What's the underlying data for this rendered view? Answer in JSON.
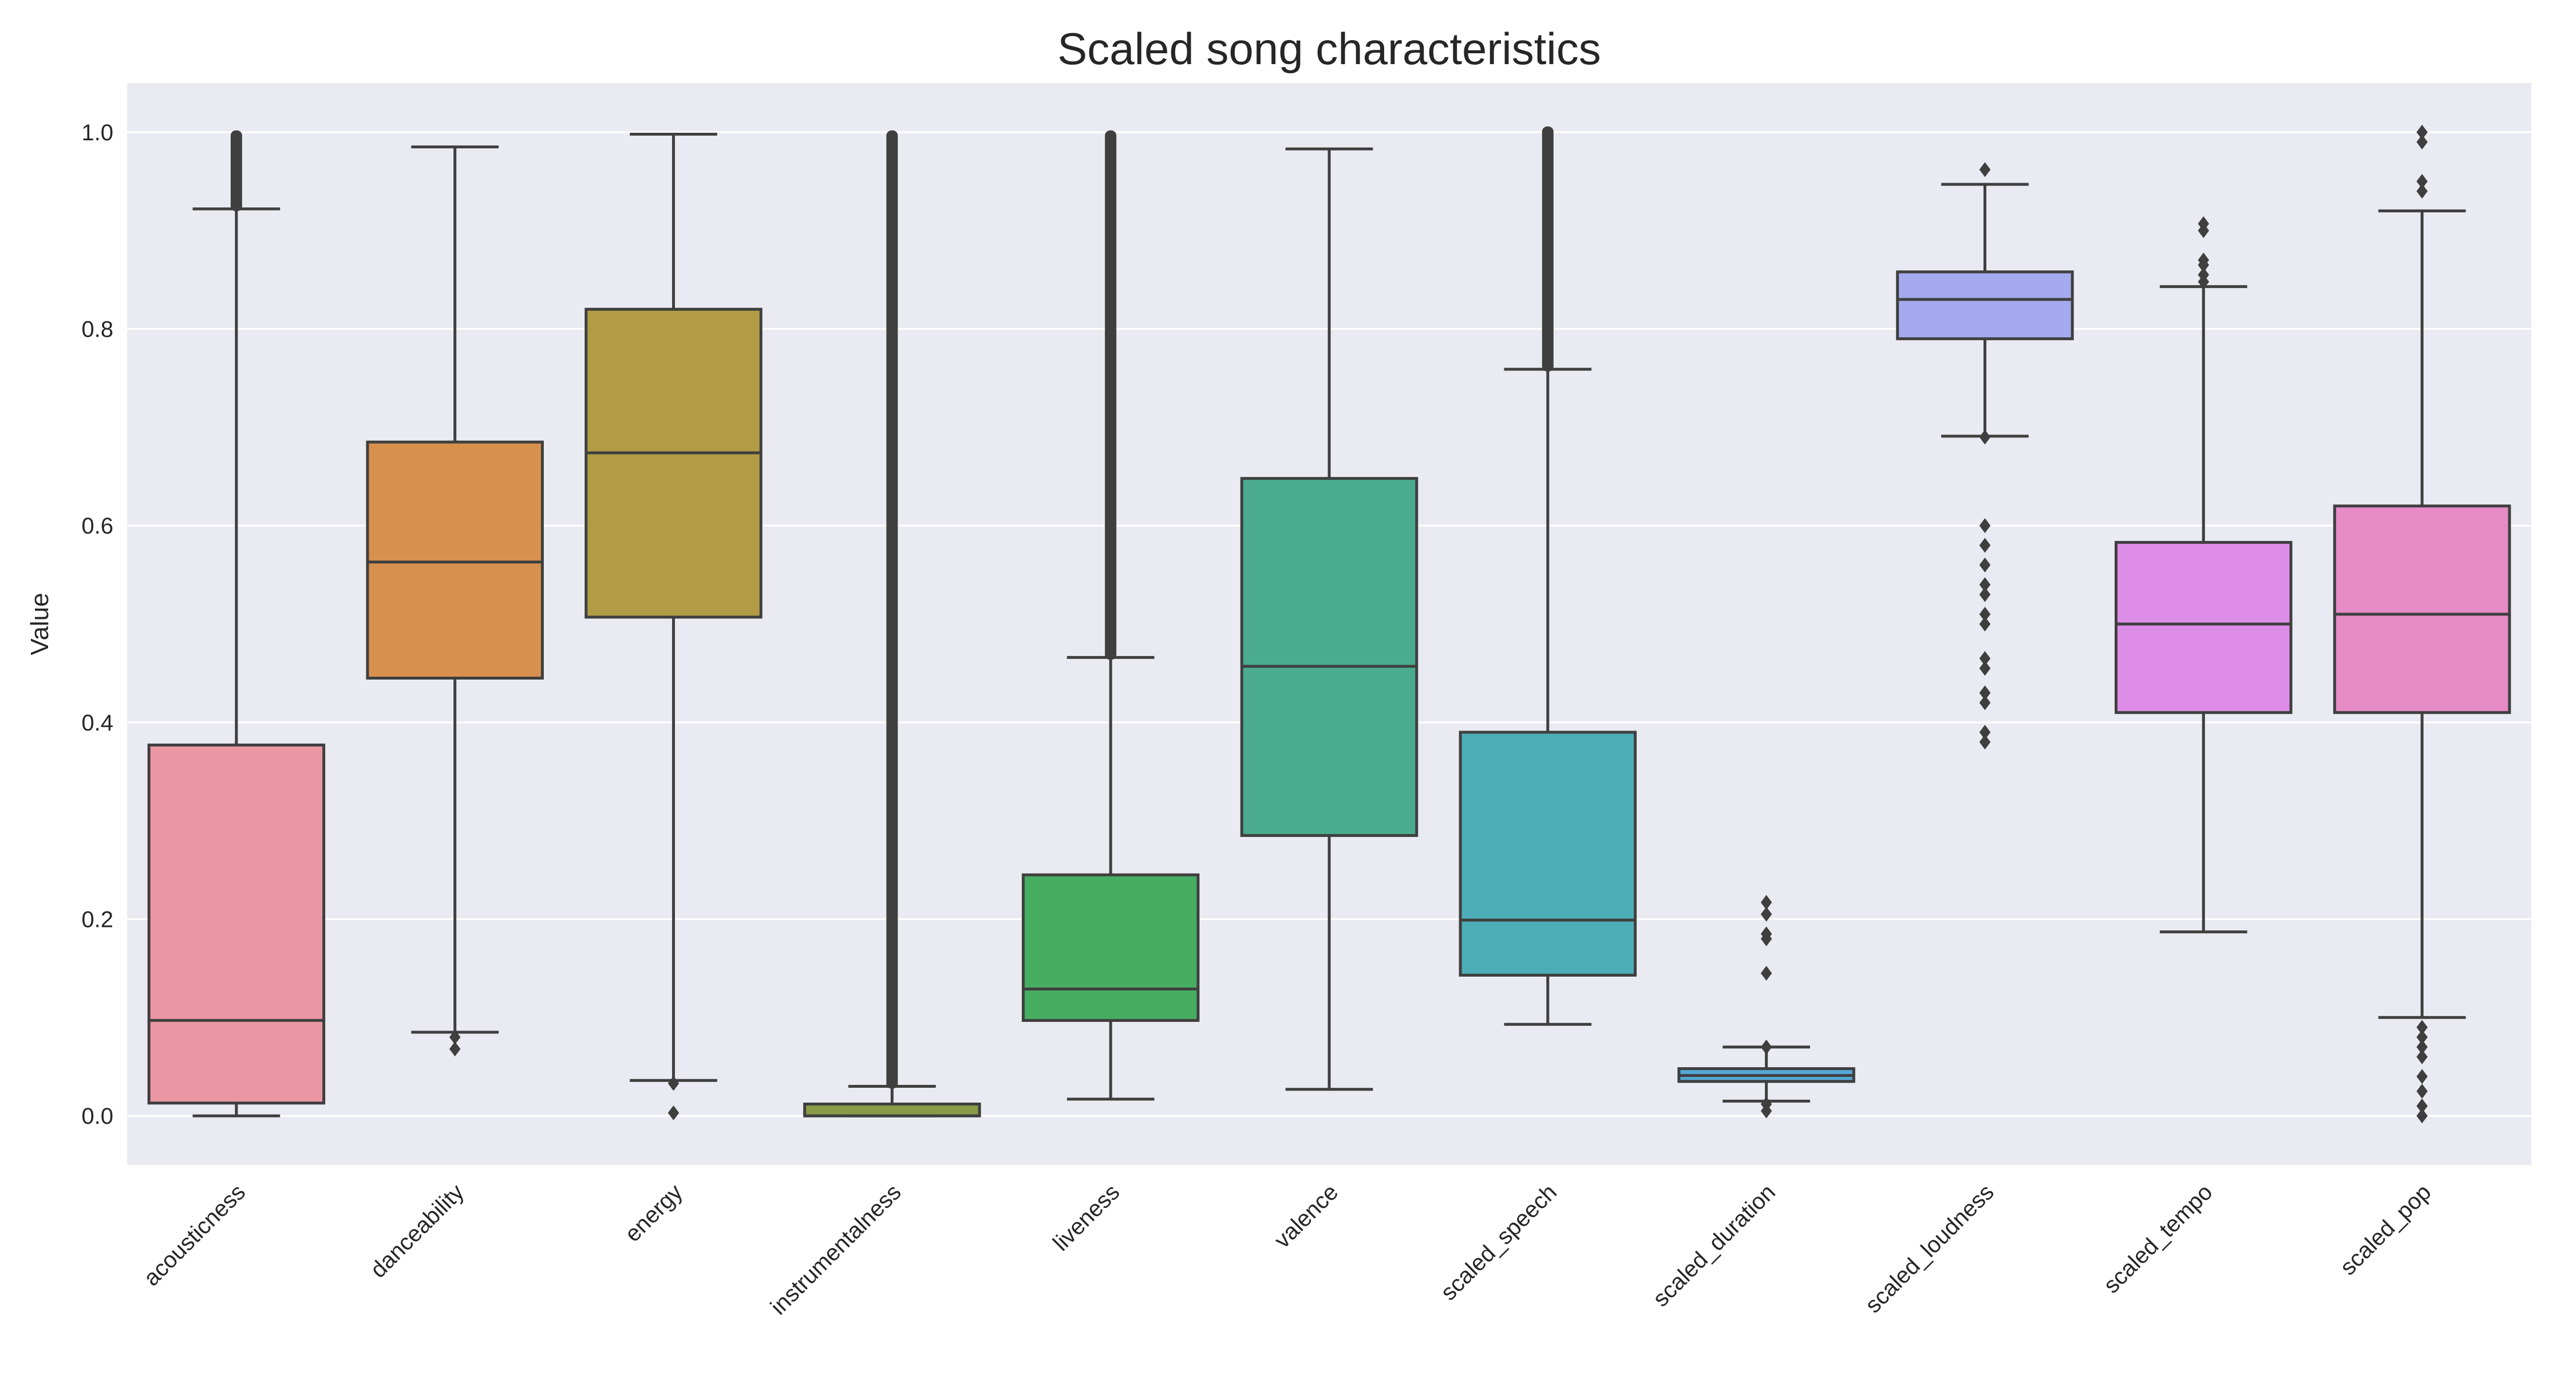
{
  "chart_data": {
    "type": "boxplot",
    "title": "Scaled song characteristics",
    "xlabel": "",
    "ylabel": "Value",
    "ylim": [
      -0.05,
      1.05
    ],
    "yticks": [
      "0.0",
      "0.2",
      "0.4",
      "0.6",
      "0.8",
      "1.0"
    ],
    "ytick_values": [
      0.0,
      0.2,
      0.4,
      0.6,
      0.8,
      1.0
    ],
    "grid": true,
    "background": "#EAEAF2",
    "categories": [
      "acousticness",
      "danceability",
      "energy",
      "instrumentalness",
      "liveness",
      "valence",
      "scaled_speech",
      "scaled_duration",
      "scaled_loudness",
      "scaled_tempo",
      "scaled_pop"
    ],
    "colors": [
      "#EA96A3",
      "#D8904F",
      "#B19C45",
      "#899B46",
      "#47AD62",
      "#4AAB8E",
      "#4DADB7",
      "#54A9D7",
      "#A5AAEE",
      "#DD8DE8",
      "#E68BC6"
    ],
    "boxes": [
      {
        "q1": 0.013,
        "median": 0.097,
        "q3": 0.377,
        "whisker_low": 0.0,
        "whisker_high": 0.922,
        "outlier_low": [],
        "outlier_high": [
          0.922,
          0.996
        ]
      },
      {
        "q1": 0.445,
        "median": 0.563,
        "q3": 0.685,
        "whisker_low": 0.085,
        "whisker_high": 0.985,
        "outlier_low": [
          0.068,
          0.08
        ],
        "outlier_high": []
      },
      {
        "q1": 0.507,
        "median": 0.674,
        "q3": 0.82,
        "whisker_low": 0.036,
        "whisker_high": 0.998,
        "outlier_low": [
          0.003,
          0.033
        ],
        "outlier_high": []
      },
      {
        "q1": 0.0,
        "median": 0.0,
        "q3": 0.012,
        "whisker_low": 0.0,
        "whisker_high": 0.03,
        "outlier_low": [],
        "outlier_high": [
          0.03,
          0.996
        ]
      },
      {
        "q1": 0.097,
        "median": 0.129,
        "q3": 0.245,
        "whisker_low": 0.017,
        "whisker_high": 0.466,
        "outlier_low": [],
        "outlier_high": [
          0.466,
          0.996
        ]
      },
      {
        "q1": 0.285,
        "median": 0.457,
        "q3": 0.648,
        "whisker_low": 0.027,
        "whisker_high": 0.983,
        "outlier_low": [],
        "outlier_high": []
      },
      {
        "q1": 0.143,
        "median": 0.199,
        "q3": 0.39,
        "whisker_low": 0.093,
        "whisker_high": 0.759,
        "outlier_low": [],
        "outlier_high": [
          0.759,
          1.0
        ]
      },
      {
        "q1": 0.035,
        "median": 0.041,
        "q3": 0.048,
        "whisker_low": 0.015,
        "whisker_high": 0.07,
        "outlier_low": [
          0.005,
          0.012
        ],
        "outlier_high": [
          0.07,
          0.145,
          0.18,
          0.185,
          0.205,
          0.217
        ]
      },
      {
        "q1": 0.79,
        "median": 0.83,
        "q3": 0.858,
        "whisker_low": 0.691,
        "whisker_high": 0.947,
        "outlier_low": [
          0.38,
          0.39,
          0.42,
          0.43,
          0.455,
          0.465,
          0.5,
          0.51,
          0.53,
          0.54,
          0.56,
          0.58,
          0.6,
          0.69
        ],
        "outlier_high": [
          0.962
        ]
      },
      {
        "q1": 0.41,
        "median": 0.5,
        "q3": 0.583,
        "whisker_low": 0.187,
        "whisker_high": 0.843,
        "outlier_low": [],
        "outlier_high": [
          0.848,
          0.855,
          0.865,
          0.87,
          0.9,
          0.907
        ]
      },
      {
        "q1": 0.41,
        "median": 0.51,
        "q3": 0.62,
        "whisker_low": 0.1,
        "whisker_high": 0.92,
        "outlier_low": [
          0.0,
          0.01,
          0.025,
          0.04,
          0.06,
          0.07,
          0.08,
          0.09
        ],
        "outlier_high": [
          0.94,
          0.95,
          0.99,
          1.0
        ]
      }
    ]
  }
}
